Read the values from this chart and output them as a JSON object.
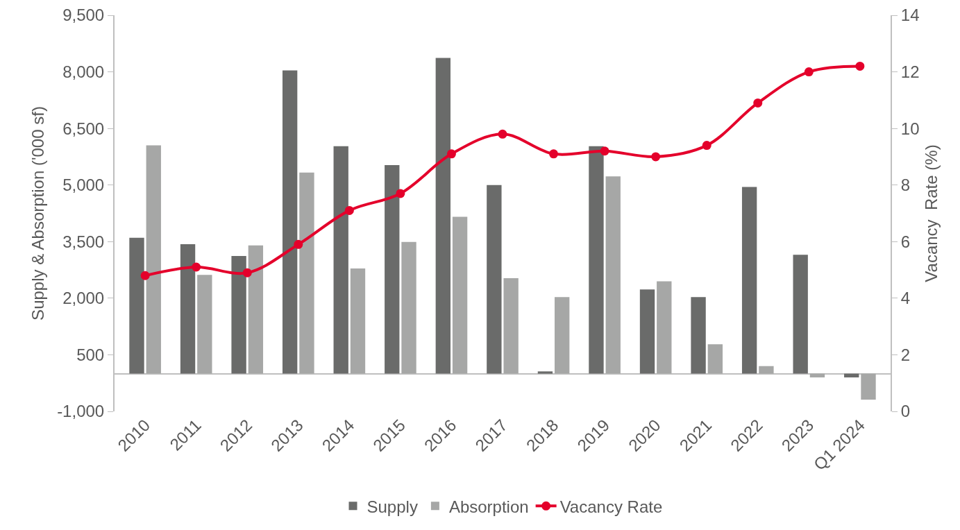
{
  "chart_data": {
    "type": "bar",
    "categories": [
      "2010",
      "2011",
      "2012",
      "2013",
      "2014",
      "2015",
      "2016",
      "2017",
      "2018",
      "2019",
      "2020",
      "2021",
      "2022",
      "2023",
      "Q1 2024"
    ],
    "series": [
      {
        "name": "Supply",
        "color": "#6a6b6a",
        "values": [
          3600,
          3430,
          3120,
          8040,
          6030,
          5530,
          8370,
          5000,
          60,
          6030,
          2230,
          2030,
          4950,
          3150,
          -100
        ]
      },
      {
        "name": "Absorption",
        "color": "#a6a7a6",
        "values": [
          6050,
          2620,
          3400,
          5330,
          2790,
          3490,
          4160,
          2530,
          2030,
          5230,
          2450,
          780,
          200,
          -100,
          -690
        ]
      },
      {
        "name": "Vacancy Rate",
        "type": "line",
        "axis": "y2",
        "color": "#e4002b",
        "marker": "circle",
        "values": [
          4.8,
          5.1,
          4.9,
          5.9,
          7.1,
          7.7,
          9.1,
          9.8,
          9.1,
          9.2,
          9.0,
          9.4,
          10.9,
          12.0,
          12.2
        ]
      }
    ],
    "ylabel": "Supply & Absorption ('000 sf)",
    "y2label": "Vacancy  Rate (%)",
    "ylim": [
      -1000,
      9500
    ],
    "yticks": [
      {
        "value": -1000,
        "label": "-1,000"
      },
      500,
      {
        "value": 2000,
        "label": "2,000"
      },
      {
        "value": 3500,
        "label": "3,500"
      },
      {
        "value": 5000,
        "label": "5,000"
      },
      {
        "value": 6500,
        "label": "6,500"
      },
      {
        "value": 8000,
        "label": "8,000"
      },
      {
        "value": 9500,
        "label": "9,500"
      }
    ],
    "y2lim": [
      0,
      14
    ],
    "y2ticks": [
      0,
      2,
      4,
      6,
      8,
      10,
      12,
      14
    ],
    "legend": "bottom"
  }
}
